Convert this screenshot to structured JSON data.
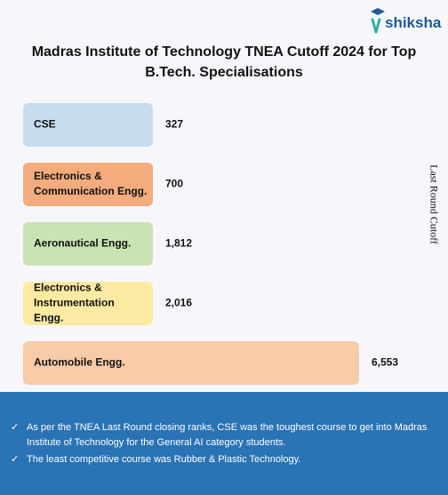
{
  "brand": {
    "name": "shiksha",
    "icon": "graduation-cap-icon"
  },
  "title": "Madras Institute of Technology TNEA Cutoff 2024 for Top B.Tech. Specialisations",
  "chart_data": {
    "type": "bar",
    "orientation": "horizontal",
    "categories": [
      "CSE",
      "Electronics & Communication Engg.",
      "Aeronautical Engg.",
      "Electronics & Instrumentation Engg.",
      "Automobile Engg."
    ],
    "values": [
      327,
      700,
      1812,
      2016,
      6553
    ],
    "data_labels": [
      "327",
      "700",
      "1,812",
      "2,016",
      "6,553"
    ],
    "ylabel": "Last Round Cutoff",
    "colors": [
      "#c6dcef",
      "#f4ab7e",
      "#c9e3b4",
      "#fdeaa2",
      "#f8cba9"
    ],
    "grid": false,
    "legend": false
  },
  "notes": {
    "check_icon": "✓",
    "items": [
      "As per the TNEA Last Round closing ranks, CSE was the toughest course to get into Madras Institute of Technology for the General AI category students.",
      "The least competitive course was Rubber & Plastic Technology."
    ]
  }
}
